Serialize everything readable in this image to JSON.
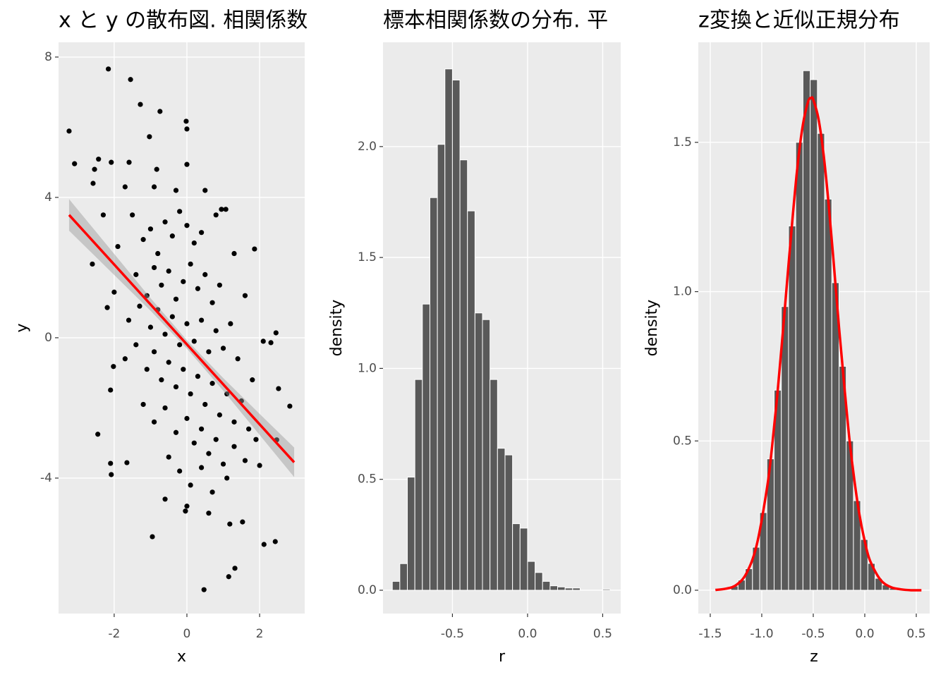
{
  "chart_data": [
    {
      "type": "scatter",
      "title": "x と y の散布図. 相関係数",
      "x_label": "x",
      "y_label": "y",
      "x": [
        -3.24,
        -3.09,
        -2.16,
        -1.55,
        -1.28,
        -0.74,
        -0.02,
        0,
        -2.43,
        -2.54,
        -2.08,
        -2.58,
        -1.59,
        -0.83,
        0,
        -1.03,
        -2.45,
        -2.1,
        -2.08,
        -1.65,
        -0.95,
        -0.04,
        0.47,
        1.15,
        1.32,
        1.18,
        1.53,
        2.12,
        2.43,
        2.83,
        2.52,
        2.45,
        2.1,
        2.31,
        1.86,
        1.07,
        0.95,
        2.47,
        2.0,
        -2.19,
        -2.1,
        -2.02,
        -1.5,
        -1.2,
        -1,
        -0.8,
        -0.6,
        -0.4,
        -0.2,
        0,
        0.2,
        0.4,
        -1.4,
        -1.1,
        -0.9,
        -0.7,
        -0.5,
        -0.3,
        -0.1,
        0.1,
        0.3,
        0.5,
        0.7,
        0.9,
        -1.6,
        -1.3,
        -1.0,
        -0.8,
        -0.6,
        -0.4,
        -0.2,
        0,
        0.2,
        0.4,
        0.6,
        0.8,
        1.0,
        1.2,
        1.4,
        -1.7,
        -1.4,
        -1.1,
        -0.9,
        -0.7,
        -0.5,
        -0.3,
        -0.1,
        0.1,
        0.3,
        0.5,
        0.7,
        0.9,
        1.1,
        1.3,
        1.5,
        1.7,
        -1.2,
        -0.9,
        -0.6,
        -0.3,
        0,
        0.2,
        0.4,
        0.6,
        0.8,
        1.0,
        1.3,
        -0.5,
        -0.2,
        0.1,
        0.4,
        0.7,
        1.1,
        1.6,
        -0.6,
        0,
        0.6,
        1.9,
        1.8,
        -2.3,
        -2.6,
        -1.9,
        -2.0,
        0.8,
        1.3,
        1.6,
        -0.3,
        -1.7,
        0.5,
        -0.9
      ],
      "values": [
        5.89,
        4.96,
        7.66,
        7.36,
        6.65,
        6.45,
        6.17,
        5.95,
        5.09,
        4.8,
        5.0,
        4.4,
        5.0,
        4.8,
        4.94,
        5.73,
        -2.75,
        -3.58,
        -3.9,
        -3.56,
        -5.67,
        -4.94,
        -7.18,
        -6.81,
        -6.57,
        -5.31,
        -5.25,
        -5.89,
        -5.81,
        -1.95,
        -1.45,
        0.14,
        -0.1,
        -0.14,
        2.53,
        3.66,
        3.66,
        -2.91,
        -3.64,
        0.86,
        -1.49,
        -0.82,
        3.5,
        2.8,
        3.1,
        2.4,
        3.3,
        2.9,
        3.6,
        3.2,
        2.7,
        3.0,
        1.8,
        1.2,
        2.0,
        1.5,
        1.9,
        1.1,
        1.6,
        2.1,
        1.4,
        1.8,
        1.0,
        1.5,
        0.5,
        0.9,
        0.3,
        0.8,
        0.1,
        0.6,
        -0.2,
        0.4,
        -0.1,
        0.5,
        -0.4,
        0.2,
        -0.3,
        0.4,
        -0.6,
        -0.6,
        -0.2,
        -0.9,
        -0.4,
        -1.2,
        -0.7,
        -1.4,
        -0.9,
        -1.6,
        -1.1,
        -1.9,
        -1.3,
        -2.2,
        -1.6,
        -2.4,
        -1.8,
        -2.6,
        -1.9,
        -2.4,
        -2.0,
        -2.7,
        -2.3,
        -3.0,
        -2.6,
        -3.3,
        -2.9,
        -3.6,
        -3.1,
        -3.4,
        -3.8,
        -4.2,
        -3.7,
        -4.4,
        -4.0,
        -3.5,
        -4.6,
        -4.8,
        -5.0,
        -2.9,
        -1.2,
        3.5,
        2.1,
        2.6,
        1.3,
        3.5,
        2.4,
        1.2,
        4.2,
        4.3,
        4.2,
        4.3
      ],
      "color": "#000000",
      "fit": {
        "x": [
          -3.24,
          2.95
        ],
        "values": [
          3.5,
          -3.55
        ],
        "color": "#ff0000"
      },
      "band": {
        "x": [
          -3.24,
          -2,
          -1,
          0,
          1,
          2,
          2.95
        ],
        "lower": [
          3.05,
          1.79,
          0.77,
          -0.31,
          -1.51,
          -2.77,
          -3.97
        ],
        "upper": [
          3.95,
          2.39,
          1.13,
          -0.07,
          -1.15,
          -2.17,
          -3.13
        ],
        "color": "#999999"
      },
      "xlim": [
        -3.53,
        3.24
      ],
      "ylim": [
        -7.86,
        8.42
      ],
      "xticks": [
        -2,
        0,
        2
      ],
      "yticks": [
        -4,
        0,
        4,
        8
      ],
      "grid": true
    },
    {
      "type": "histogram",
      "title": "標本相関係数の分布. 平",
      "x_label": "r",
      "y_label": "density",
      "bins": [
        -0.9,
        -0.85,
        -0.8,
        -0.75,
        -0.7,
        -0.65,
        -0.6,
        -0.55,
        -0.5,
        -0.45,
        -0.4,
        -0.35,
        -0.3,
        -0.25,
        -0.2,
        -0.15,
        -0.1,
        -0.05,
        0,
        0.05,
        0.1,
        0.15,
        0.2,
        0.25,
        0.3,
        0.35,
        0.4,
        0.45,
        0.5,
        0.55
      ],
      "values": [
        0.04,
        0.12,
        0.51,
        0.95,
        1.29,
        1.77,
        2.01,
        2.35,
        2.3,
        1.94,
        1.71,
        1.25,
        1.22,
        0.95,
        0.64,
        0.61,
        0.3,
        0.28,
        0.13,
        0.08,
        0.04,
        0.02,
        0.015,
        0.01,
        0.01,
        0,
        0,
        0,
        0.005
      ],
      "color": "#595959",
      "xlim": [
        -0.962,
        0.62
      ],
      "ylim": [
        -0.105,
        2.47
      ],
      "xticks": [
        -0.5,
        {
          "value": 0,
          "label": "0.0"
        },
        0.5
      ],
      "yticks": [
        {
          "value": 0,
          "label": "0.0"
        },
        0.5,
        {
          "value": 1,
          "label": "1.0"
        },
        1.5,
        {
          "value": 2,
          "label": "2.0"
        }
      ],
      "grid": true
    },
    {
      "type": "histogram",
      "title": "z変換と近似正規分布",
      "x_label": "z",
      "y_label": "density",
      "bins": [
        -1.3,
        -1.23,
        -1.16,
        -1.09,
        -1.02,
        -0.95,
        -0.88,
        -0.81,
        -0.74,
        -0.67,
        -0.6,
        -0.53,
        -0.46,
        -0.39,
        -0.32,
        -0.25,
        -0.18,
        -0.11,
        -0.04,
        0.03,
        0.1,
        0.17,
        0.24,
        0.31
      ],
      "values": [
        0.014,
        0.034,
        0.072,
        0.144,
        0.26,
        0.44,
        0.67,
        0.95,
        1.22,
        1.5,
        1.74,
        1.71,
        1.53,
        1.31,
        1.03,
        0.75,
        0.5,
        0.3,
        0.17,
        0.09,
        0.04,
        0.018,
        0.007
      ],
      "color": "#595959",
      "curve": {
        "x": [
          -1.45,
          -1.35,
          -1.25,
          -1.15,
          -1.05,
          -0.95,
          -0.9,
          -0.85,
          -0.8,
          -0.75,
          -0.7,
          -0.65,
          -0.6,
          -0.55,
          -0.52,
          -0.5,
          -0.45,
          -0.4,
          -0.35,
          -0.3,
          -0.25,
          -0.2,
          -0.15,
          -0.1,
          -0.05,
          0,
          0.05,
          0.15,
          0.25,
          0.35,
          0.45,
          0.55
        ],
        "values": [
          0.001,
          0.005,
          0.017,
          0.056,
          0.15,
          0.34,
          0.48,
          0.65,
          0.845,
          1.05,
          1.25,
          1.43,
          1.56,
          1.636,
          1.649,
          1.643,
          1.58,
          1.46,
          1.29,
          1.09,
          0.88,
          0.69,
          0.51,
          0.366,
          0.25,
          0.164,
          0.1,
          0.036,
          0.011,
          0.003,
          0,
          0
        ],
        "color": "#ff0000"
      },
      "xlim": [
        -1.616,
        0.63
      ],
      "ylim": [
        -0.078,
        1.835
      ],
      "xticks": [
        -1.5,
        {
          "value": -1,
          "label": "-1.0"
        },
        -0.5,
        {
          "value": 0,
          "label": "0.0"
        },
        0.5
      ],
      "yticks": [
        {
          "value": 0,
          "label": "0.0"
        },
        0.5,
        {
          "value": 1,
          "label": "1.0"
        },
        1.5
      ],
      "grid": true
    }
  ]
}
